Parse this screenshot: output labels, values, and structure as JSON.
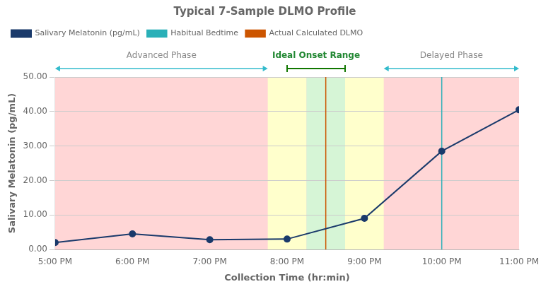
{
  "chart_data": {
    "type": "line",
    "title": "Typical 7-Sample DLMO Profile",
    "x_label": "Collection Time (hr:min)",
    "y_label": "Salivary Melatonin (pg/mL)",
    "x": [
      5,
      6,
      7,
      8,
      9,
      10,
      11
    ],
    "series": [
      {
        "name": "Salivary Melatonin (pg/mL)",
        "color": "#1a3a6b",
        "marker": "circle",
        "values": [
          2.0,
          4.5,
          2.8,
          3.0,
          9.0,
          28.5,
          40.5
        ]
      }
    ],
    "xlim": [
      5,
      11
    ],
    "xticks": [
      {
        "value": 5,
        "label": "5:00 PM"
      },
      {
        "value": 6,
        "label": "6:00 PM"
      },
      {
        "value": 7,
        "label": "7:00 PM"
      },
      {
        "value": 8,
        "label": "8:00 PM"
      },
      {
        "value": 9,
        "label": "9:00 PM"
      },
      {
        "value": 10,
        "label": "10:00 PM"
      },
      {
        "value": 11,
        "label": "11:00 PM"
      }
    ],
    "ylim": [
      0,
      50
    ],
    "yticks": [
      {
        "value": 0.0,
        "label": "0.00"
      },
      {
        "value": 10.0,
        "label": "10.00"
      },
      {
        "value": 20.0,
        "label": "20.00"
      },
      {
        "value": 30.0,
        "label": "30.00"
      },
      {
        "value": 40.0,
        "label": "40.00"
      },
      {
        "value": 50.0,
        "label": "50.00"
      }
    ],
    "grid": "y",
    "legend": "upper left",
    "vertical_lines": [
      {
        "name": "Habitual Bedtime",
        "x": 10.0,
        "color": "#2ab0b8"
      },
      {
        "name": "Actual Calculated DLMO",
        "x": 8.5,
        "color": "#cc5500"
      }
    ],
    "regions": [
      {
        "start": 5.0,
        "end": 11.0,
        "color": "#ffd6d6"
      },
      {
        "start": 7.75,
        "end": 8.25,
        "color": "#ffffcc"
      },
      {
        "start": 8.25,
        "end": 8.75,
        "color": "#d6f5d6"
      },
      {
        "start": 8.75,
        "end": 9.25,
        "color": "#ffffcc"
      }
    ],
    "annotations": [
      {
        "text": "Advanced Phase",
        "x": 6.375,
        "start": 5.0,
        "end": 7.75,
        "style": "double_arrow",
        "color": "#33bbcc",
        "text_color": "#888888"
      },
      {
        "text": "Ideal Onset Range",
        "x": 8.375,
        "start": 8.0,
        "end": 8.75,
        "style": "bracket",
        "color": "#117700",
        "text_color": "#228833"
      },
      {
        "text": "Delayed Phase",
        "x": 10.125,
        "start": 9.25,
        "end": 11.0,
        "style": "double_arrow",
        "color": "#33bbcc",
        "text_color": "#888888"
      }
    ]
  }
}
